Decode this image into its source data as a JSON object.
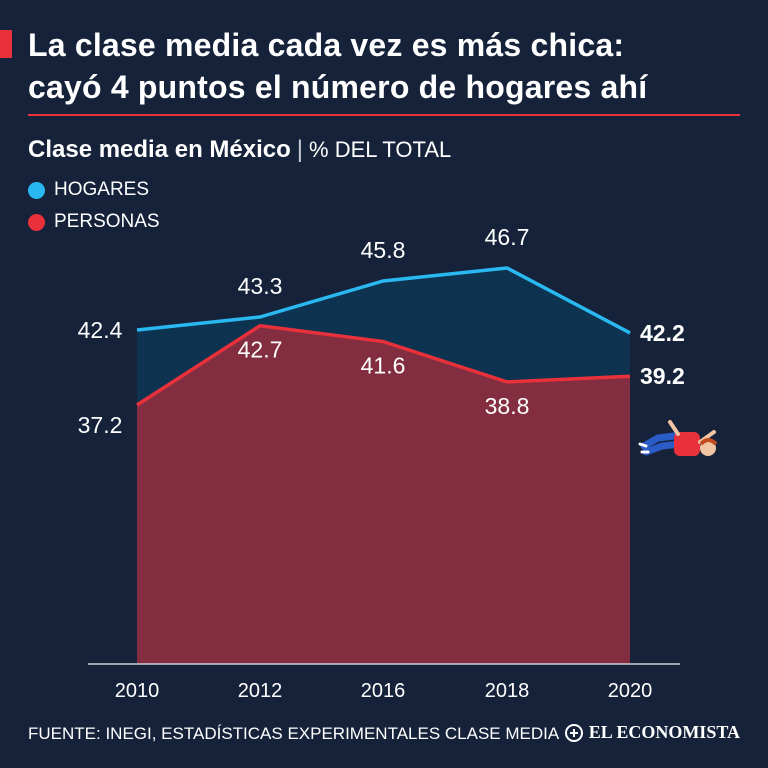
{
  "header": {
    "title_line1": "La clase media cada vez es más chica:",
    "title_line2": "cayó 4 puntos el número de hogares ahí",
    "accent_color": "#e8313a"
  },
  "subtitle": {
    "main": "Clase media en México",
    "separator": "|",
    "unit": "% DEL TOTAL"
  },
  "legend": [
    {
      "label": "HOGARES",
      "color": "#29b8f0"
    },
    {
      "label": "PERSONAS",
      "color": "#e8313a"
    }
  ],
  "chart_data": {
    "type": "area",
    "categories": [
      "2010",
      "2012",
      "2016",
      "2018",
      "2020"
    ],
    "series": [
      {
        "name": "HOGARES",
        "values": [
          42.4,
          43.3,
          45.8,
          46.7,
          42.2
        ],
        "color": "#29b8f0",
        "fill": "#0d3350"
      },
      {
        "name": "PERSONAS",
        "values": [
          37.2,
          42.7,
          41.6,
          38.8,
          39.2
        ],
        "color": "#e8313a",
        "fill": "#832e40"
      }
    ],
    "data_labels": [
      [
        "42.4",
        "43.3",
        "45.8",
        "46.7",
        "42.2"
      ],
      [
        "37.2",
        "42.7",
        "41.6",
        "38.8",
        "39.2"
      ]
    ],
    "title": "Clase media en México",
    "xlabel": "",
    "ylabel": "% DEL TOTAL",
    "grid": false,
    "legend_position": "top-left"
  },
  "footer": {
    "source": "FUENTE: INEGI, ESTADÍSTICAS EXPERIMENTALES CLASE MEDIA",
    "brand": "EL ECONOMISTA"
  }
}
